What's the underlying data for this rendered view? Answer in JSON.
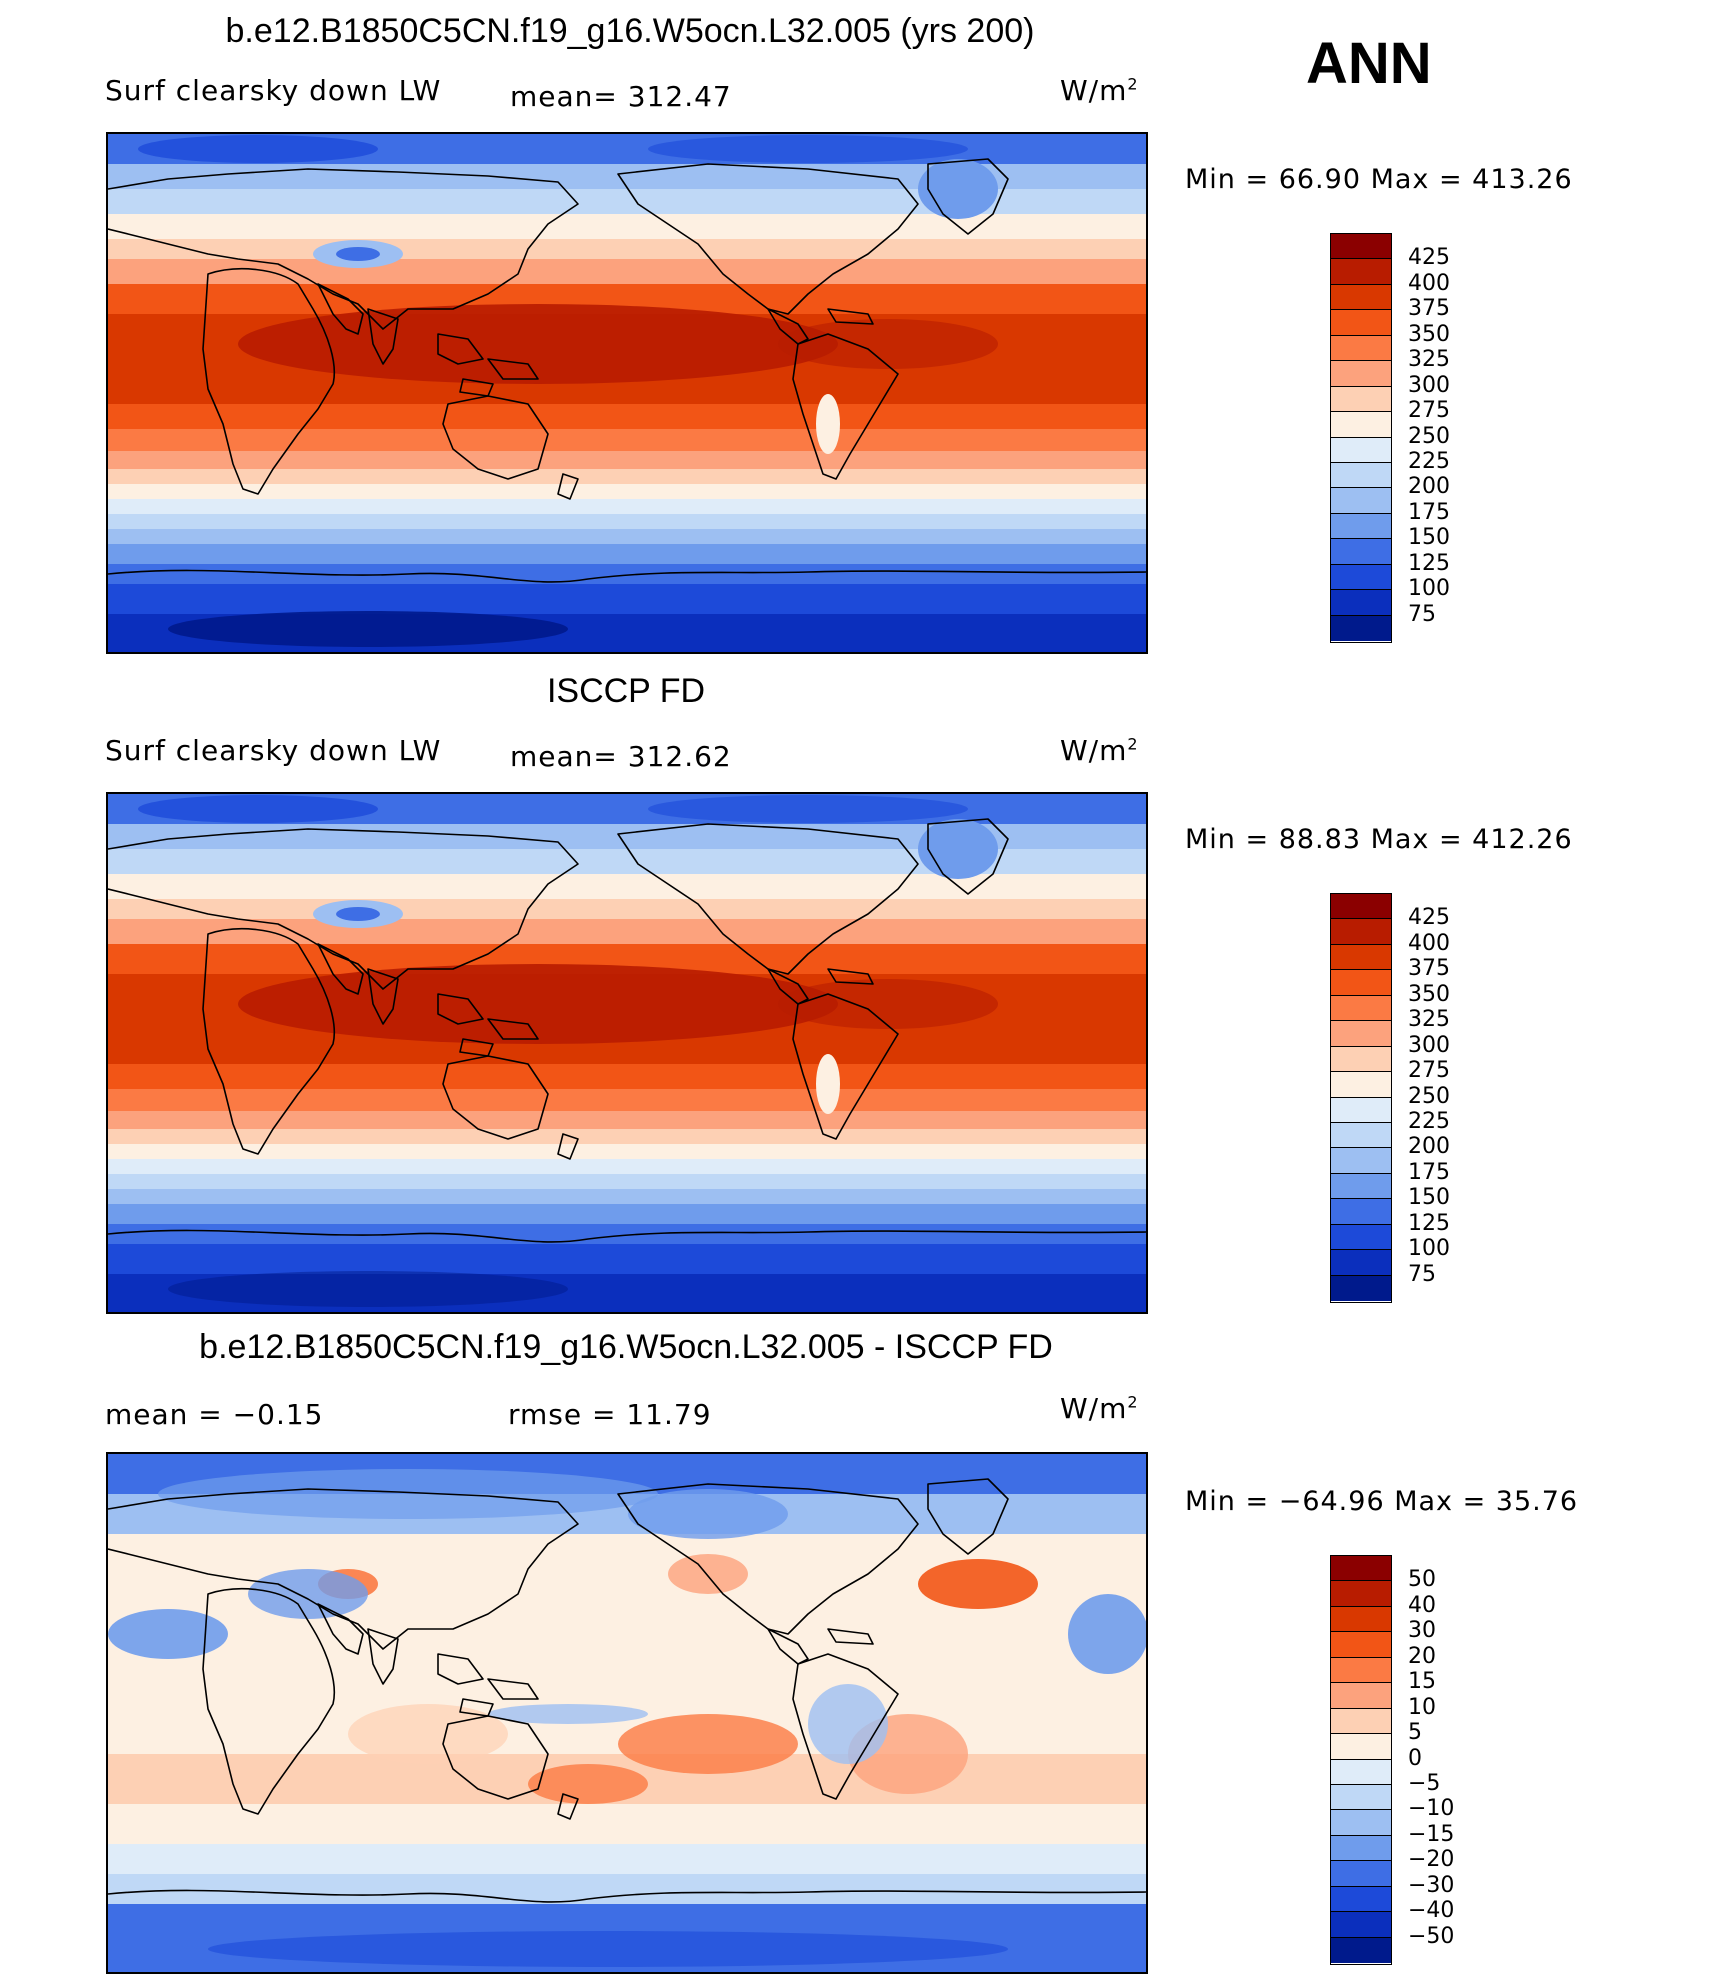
{
  "season": "ANN",
  "panels": [
    {
      "title": "b.e12.B1850C5CN.f19_g16.W5ocn.L32.005 (yrs 200)",
      "left_label": "Surf clearsky down LW",
      "mid_label": "mean= 312.47",
      "unit": "W/m",
      "unit_exp": "2",
      "minmax": "Min =   66.90 Max = 413.26",
      "colorbar": {
        "labels": [
          "425",
          "400",
          "375",
          "350",
          "325",
          "300",
          "275",
          "250",
          "225",
          "200",
          "175",
          "150",
          "125",
          "100",
          "75"
        ],
        "colors": [
          "#8b0000",
          "#b81c00",
          "#d93800",
          "#f25516",
          "#fb7a44",
          "#fca27d",
          "#fdd0b4",
          "#fdf0e2",
          "#dfecf9",
          "#bfd8f6",
          "#9dbff2",
          "#6f9cec",
          "#3e6ee5",
          "#1d4ad9",
          "#0b2fbd",
          "#001a8c"
        ]
      }
    },
    {
      "title": "ISCCP FD",
      "left_label": "Surf clearsky down LW",
      "mid_label": "mean= 312.62",
      "unit": "W/m",
      "unit_exp": "2",
      "minmax": "Min =   88.83 Max = 412.26",
      "colorbar": {
        "labels": [
          "425",
          "400",
          "375",
          "350",
          "325",
          "300",
          "275",
          "250",
          "225",
          "200",
          "175",
          "150",
          "125",
          "100",
          "75"
        ],
        "colors": [
          "#8b0000",
          "#b81c00",
          "#d93800",
          "#f25516",
          "#fb7a44",
          "#fca27d",
          "#fdd0b4",
          "#fdf0e2",
          "#dfecf9",
          "#bfd8f6",
          "#9dbff2",
          "#6f9cec",
          "#3e6ee5",
          "#1d4ad9",
          "#0b2fbd",
          "#001a8c"
        ]
      }
    },
    {
      "title": "b.e12.B1850C5CN.f19_g16.W5ocn.L32.005 - ISCCP FD",
      "left_label": "mean =   −0.15",
      "mid_label": "rmse =    11.79",
      "unit": "W/m",
      "unit_exp": "2",
      "minmax": "Min = −64.96 Max =   35.76",
      "colorbar": {
        "labels": [
          "50",
          "40",
          "30",
          "20",
          "15",
          "10",
          "5",
          "0",
          "−5",
          "−10",
          "−15",
          "−20",
          "−30",
          "−40",
          "−50"
        ],
        "colors": [
          "#8b0000",
          "#b81c00",
          "#d93800",
          "#f25516",
          "#fb7a44",
          "#fca27d",
          "#fdd0b4",
          "#fdf0e2",
          "#dfecf9",
          "#bfd8f6",
          "#9dbff2",
          "#6f9cec",
          "#3e6ee5",
          "#1d4ad9",
          "#0b2fbd",
          "#001a8c"
        ]
      }
    }
  ]
}
